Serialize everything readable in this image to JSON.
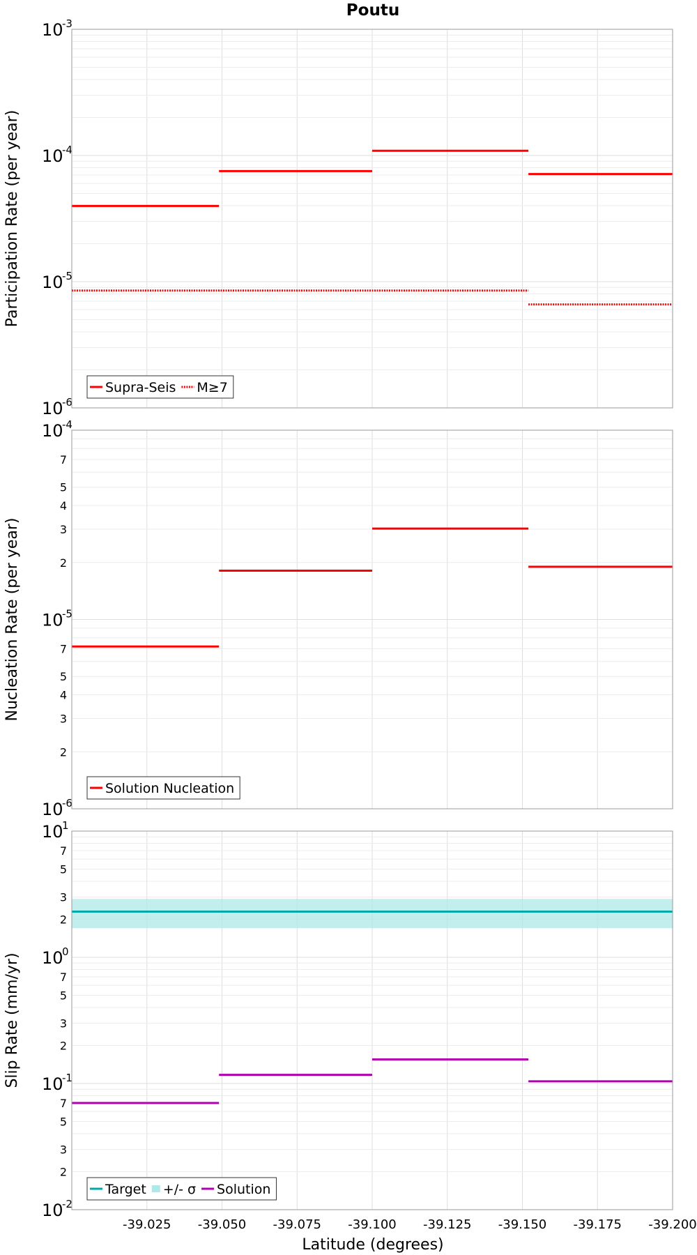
{
  "chart_data": [
    {
      "type": "line",
      "title": "Poutu",
      "ylabel": "Participation Rate (per year)",
      "yscale": "log",
      "ylim": [
        1e-06,
        0.001
      ],
      "xlim": [
        -39.0,
        -39.2
      ],
      "legend_position": "bottom-left",
      "grid": true,
      "series": [
        {
          "name": "Supra-Seis",
          "color": "#ff0000",
          "style": "solid",
          "segments": [
            {
              "x": [
                -39.0,
                -39.049
              ],
              "y": 3.98e-05
            },
            {
              "x": [
                -39.049,
                -39.1
              ],
              "y": 7.52e-05
            },
            {
              "x": [
                -39.1,
                -39.152
              ],
              "y": 0.000109
            },
            {
              "x": [
                -39.152,
                -39.2
              ],
              "y": 7.13e-05
            }
          ]
        },
        {
          "name": "M≥7",
          "color": "#ff0000",
          "style": "dotted",
          "segments": [
            {
              "x": [
                -39.0,
                -39.152
              ],
              "y": 8.5e-06
            },
            {
              "x": [
                -39.152,
                -39.2
              ],
              "y": 6.6e-06
            }
          ]
        }
      ]
    },
    {
      "type": "line",
      "title": "",
      "ylabel": "Nucleation Rate (per year)",
      "yscale": "log",
      "ylim": [
        1e-06,
        0.0001
      ],
      "xlim": [
        -39.0,
        -39.2
      ],
      "legend_position": "bottom-left",
      "grid": true,
      "series": [
        {
          "name": "Solution Nucleation",
          "color": "#ff0000",
          "style": "solid",
          "segments": [
            {
              "x": [
                -39.0,
                -39.049
              ],
              "y": 7.2e-06
            },
            {
              "x": [
                -39.049,
                -39.1
              ],
              "y": 1.81e-05
            },
            {
              "x": [
                -39.1,
                -39.152
              ],
              "y": 3.02e-05
            },
            {
              "x": [
                -39.152,
                -39.2
              ],
              "y": 1.9e-05
            }
          ]
        }
      ]
    },
    {
      "type": "line",
      "title": "",
      "ylabel": "Slip Rate (mm/yr)",
      "xlabel": "Latitude (degrees)",
      "yscale": "log",
      "ylim": [
        0.01,
        10
      ],
      "xlim": [
        -39.0,
        -39.2
      ],
      "xticks": [
        -39.025,
        -39.05,
        -39.075,
        -39.1,
        -39.125,
        -39.15,
        -39.175,
        -39.2
      ],
      "xtick_labels": [
        "-39.025",
        "-39.050",
        "-39.075",
        "-39.100",
        "-39.125",
        "-39.150",
        "-39.175",
        "-39.200"
      ],
      "legend_position": "bottom-left",
      "grid": true,
      "series": [
        {
          "name": "Target",
          "color": "#00a8a8",
          "style": "solid",
          "segments": [
            {
              "x": [
                -39.0,
                -39.2
              ],
              "y": 2.3
            }
          ]
        },
        {
          "name": "+/- σ",
          "color": "#aee8e8",
          "style": "band",
          "band": {
            "x": [
              -39.0,
              -39.2
            ],
            "low": 1.7,
            "high": 2.9
          }
        },
        {
          "name": "Solution",
          "color": "#b000b0",
          "style": "solid",
          "segments": [
            {
              "x": [
                -39.0,
                -39.049
              ],
              "y": 0.07
            },
            {
              "x": [
                -39.049,
                -39.1
              ],
              "y": 0.117
            },
            {
              "x": [
                -39.1,
                -39.152
              ],
              "y": 0.155
            },
            {
              "x": [
                -39.152,
                -39.2
              ],
              "y": 0.104
            }
          ]
        }
      ]
    }
  ]
}
